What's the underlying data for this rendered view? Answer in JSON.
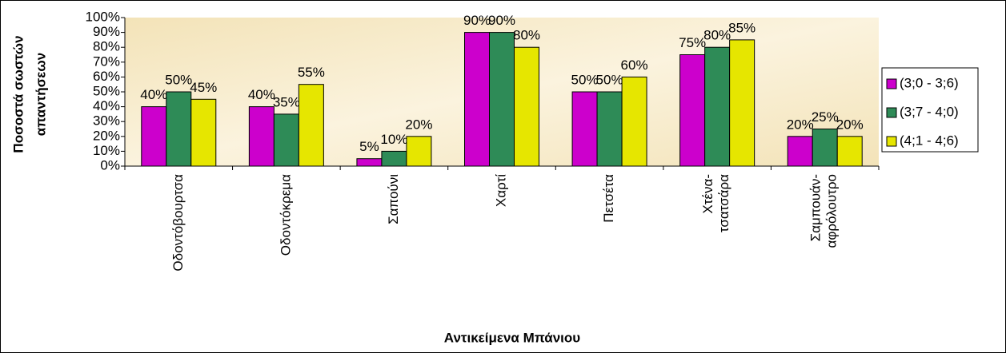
{
  "chart_data": {
    "type": "bar",
    "y_label": [
      "Ποσοστά σωστών",
      "απαντήσεων"
    ],
    "x_label": "Αντικείμενα Μπάνιου",
    "categories": [
      "Οδοντόβουρτσα",
      "Οδοντόκρεμα",
      "Σαπούνι",
      "Χαρτί",
      "Πετσέτα",
      "Χτένα-\nτσατσάρα",
      "Σαμπουάν-\nαφρόλουτρο"
    ],
    "series": [
      {
        "name": "(3;0 - 3;6)",
        "color": "#cc00cc",
        "values": [
          40,
          40,
          5,
          90,
          50,
          75,
          20
        ],
        "value_labels": [
          "40%",
          "40%",
          "5%",
          "90%",
          "50%",
          "75%",
          "20%"
        ]
      },
      {
        "name": "(3;7 - 4;0)",
        "color": "#2e8b57",
        "values": [
          50,
          35,
          10,
          90,
          50,
          80,
          25
        ],
        "value_labels": [
          "50%",
          "35%",
          "10%",
          "90%",
          "50%",
          "80%",
          "25%"
        ]
      },
      {
        "name": "(4;1 - 4;6)",
        "color": "#e6e600",
        "values": [
          45,
          55,
          20,
          80,
          60,
          85,
          20
        ],
        "value_labels": [
          "45%",
          "55%",
          "20%",
          "80%",
          "60%",
          "85%",
          "20%"
        ]
      }
    ],
    "ylim": [
      0,
      100
    ],
    "yticks": [
      {
        "value": 0,
        "label": "0%"
      },
      {
        "value": 10,
        "label": "10%"
      },
      {
        "value": 20,
        "label": "20%"
      },
      {
        "value": 30,
        "label": "30%"
      },
      {
        "value": 40,
        "label": "40%"
      },
      {
        "value": 50,
        "label": "50%"
      },
      {
        "value": 60,
        "label": "60%"
      },
      {
        "value": 70,
        "label": "70%"
      },
      {
        "value": 80,
        "label": "80%"
      },
      {
        "value": 90,
        "label": "90%"
      },
      {
        "value": 100,
        "label": "100%"
      }
    ],
    "grid": false,
    "legend": "right"
  }
}
